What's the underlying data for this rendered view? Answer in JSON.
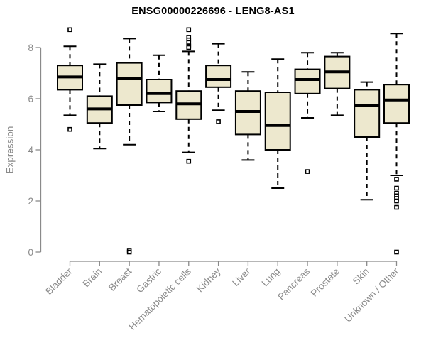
{
  "page": {
    "background": "#FFFFFF"
  },
  "chart_data": {
    "type": "boxplot",
    "title": "ENSG00000226696 - LENG8-AS1",
    "ylabel": "Expression",
    "xlabel": "",
    "ylim": [
      0,
      8.8
    ],
    "yticks": [
      0,
      2,
      4,
      6,
      8
    ],
    "grid": false,
    "legend": "none",
    "title_color": "#000000",
    "axis_color": "#8A8A8A",
    "tick_label_color": "#8A8A8A",
    "box_fill": "#EDE8CE",
    "box_stroke": "#000000",
    "median_color": "#000000",
    "whisker_style": "dashed",
    "outlier_marker": "open-square",
    "categories": [
      "Bladder",
      "Brain",
      "Breast",
      "Gastric",
      "Hematopoietic cells",
      "Kidney",
      "Liver",
      "Lung",
      "Pancreas",
      "Prostate",
      "Skin",
      "Unknown / Other"
    ],
    "series": [
      {
        "category": "Bladder",
        "whisker_low": 5.35,
        "q1": 6.35,
        "median": 6.85,
        "q3": 7.3,
        "whisker_high": 8.05,
        "outliers": [
          8.7,
          4.8
        ]
      },
      {
        "category": "Brain",
        "whisker_low": 4.05,
        "q1": 5.05,
        "median": 5.6,
        "q3": 6.1,
        "whisker_high": 7.35,
        "outliers": []
      },
      {
        "category": "Breast",
        "whisker_low": 4.2,
        "q1": 5.75,
        "median": 6.8,
        "q3": 7.4,
        "whisker_high": 8.35,
        "outliers": [
          0.07,
          0.0
        ]
      },
      {
        "category": "Gastric",
        "whisker_low": 5.5,
        "q1": 5.85,
        "median": 6.2,
        "q3": 6.75,
        "whisker_high": 7.7,
        "outliers": []
      },
      {
        "category": "Hematopoietic cells",
        "whisker_low": 3.9,
        "q1": 5.2,
        "median": 5.8,
        "q3": 6.3,
        "whisker_high": 7.85,
        "outliers": [
          8.7,
          8.4,
          8.3,
          8.2,
          8.1,
          8.05,
          8.0,
          3.55
        ]
      },
      {
        "category": "Kidney",
        "whisker_low": 5.55,
        "q1": 6.45,
        "median": 6.75,
        "q3": 7.3,
        "whisker_high": 8.15,
        "outliers": [
          5.1
        ]
      },
      {
        "category": "Liver",
        "whisker_low": 3.6,
        "q1": 4.6,
        "median": 5.5,
        "q3": 6.3,
        "whisker_high": 7.05,
        "outliers": []
      },
      {
        "category": "Lung",
        "whisker_low": 2.5,
        "q1": 4.0,
        "median": 4.95,
        "q3": 6.25,
        "whisker_high": 7.55,
        "outliers": []
      },
      {
        "category": "Pancreas",
        "whisker_low": 5.25,
        "q1": 6.2,
        "median": 6.75,
        "q3": 7.15,
        "whisker_high": 7.8,
        "outliers": [
          3.15
        ]
      },
      {
        "category": "Prostate",
        "whisker_low": 5.35,
        "q1": 6.4,
        "median": 7.05,
        "q3": 7.65,
        "whisker_high": 7.8,
        "outliers": []
      },
      {
        "category": "Skin",
        "whisker_low": 2.05,
        "q1": 4.5,
        "median": 5.75,
        "q3": 6.35,
        "whisker_high": 6.65,
        "outliers": []
      },
      {
        "category": "Unknown / Other",
        "whisker_low": 3.0,
        "q1": 5.05,
        "median": 5.95,
        "q3": 6.55,
        "whisker_high": 8.55,
        "outliers": [
          2.85,
          2.5,
          2.3,
          2.2,
          2.1,
          2.0,
          1.75,
          0.0
        ]
      }
    ]
  }
}
